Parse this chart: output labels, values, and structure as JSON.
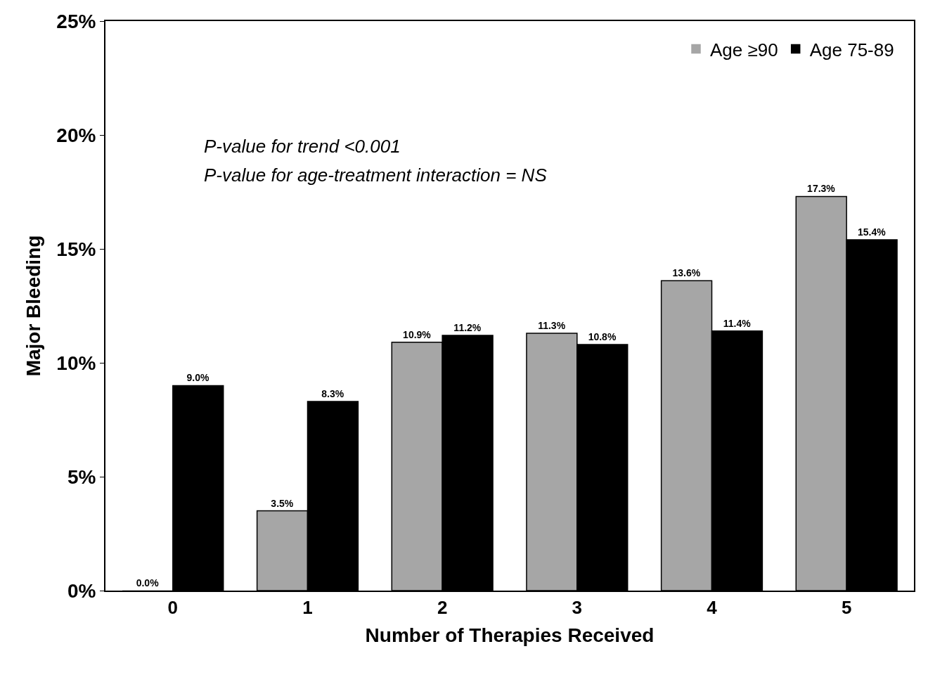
{
  "chart_data": {
    "type": "bar",
    "xlabel": "Number of Therapies Received",
    "ylabel": "Major Bleeding",
    "categories": [
      "0",
      "1",
      "2",
      "3",
      "4",
      "5"
    ],
    "series": [
      {
        "name": "Age ≥90",
        "color": "#a6a6a6",
        "values": [
          0.0,
          3.5,
          10.9,
          11.3,
          13.6,
          17.3
        ],
        "value_labels": [
          "0.0%",
          "3.5%",
          "10.9%",
          "11.3%",
          "13.6%",
          "17.3%"
        ]
      },
      {
        "name": "Age 75-89",
        "color": "#000000",
        "values": [
          9.0,
          8.3,
          11.2,
          10.8,
          11.4,
          15.4
        ],
        "value_labels": [
          "9.0%",
          "8.3%",
          "11.2%",
          "10.8%",
          "11.4%",
          "15.4%"
        ]
      }
    ],
    "ylim": [
      0,
      25
    ],
    "yticks": [
      {
        "value": 0,
        "label": "0%"
      },
      {
        "value": 5,
        "label": "5%"
      },
      {
        "value": 10,
        "label": "10%"
      },
      {
        "value": 15,
        "label": "15%"
      },
      {
        "value": 20,
        "label": "20%"
      },
      {
        "value": 25,
        "label": "25%"
      }
    ],
    "annotations": [
      "P-value for trend <0.001",
      "P-value for age-treatment interaction = NS"
    ],
    "legend": "top right"
  }
}
